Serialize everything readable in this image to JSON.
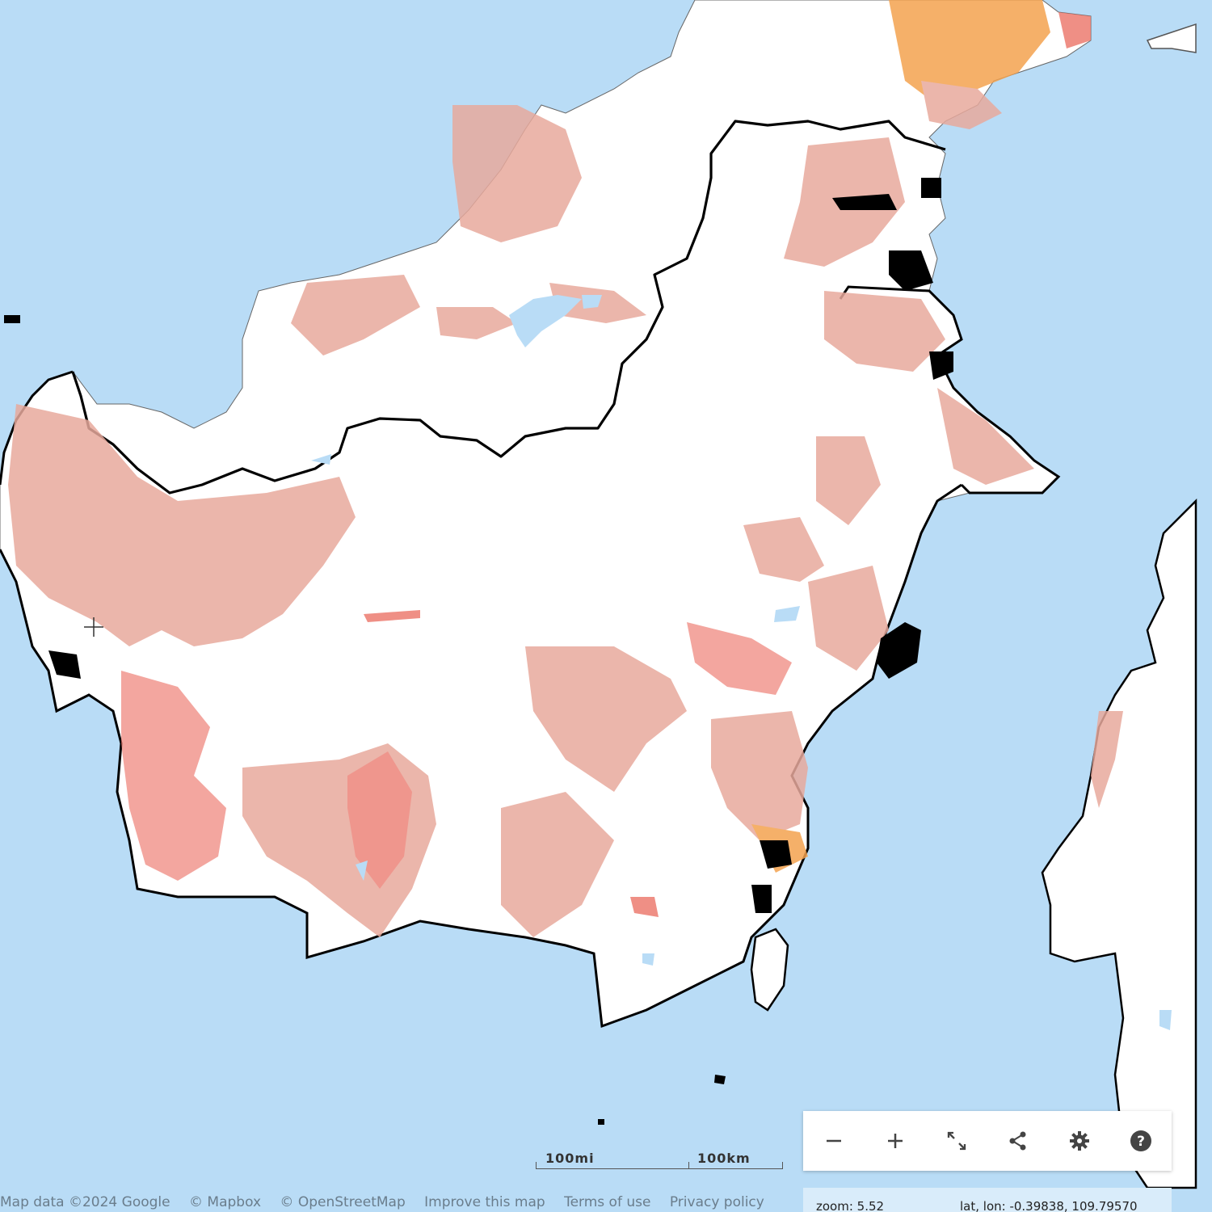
{
  "map": {
    "water_color": "#b9dcf6",
    "land_color": "#ffffff",
    "border_color": "#000000",
    "overlay_colors": [
      "#e8a99c",
      "#ec7b70",
      "#f4a24f"
    ]
  },
  "controls": {
    "zoom_out_icon": "minus-icon",
    "zoom_in_icon": "plus-icon",
    "fullscreen_icon": "expand-icon",
    "share_icon": "share-icon",
    "settings_icon": "gear-icon",
    "help_icon": "question-circle-icon"
  },
  "scale": {
    "miles_label": "100mi",
    "km_label": "100km"
  },
  "attribution": {
    "map_data": "Map data ©2024 Google",
    "mapbox": "© Mapbox",
    "osm": "© OpenStreetMap",
    "improve": "Improve this map",
    "terms": "Terms of use",
    "privacy": "Privacy policy"
  },
  "status": {
    "zoom": "zoom: 5.52",
    "latlon": "lat, lon: -0.39838, 109.79570"
  }
}
